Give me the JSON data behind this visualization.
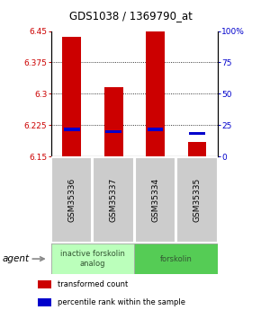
{
  "title": "GDS1038 / 1369790_at",
  "samples": [
    "GSM35336",
    "GSM35337",
    "GSM35334",
    "GSM35335"
  ],
  "bar_values": [
    6.435,
    6.315,
    6.45,
    6.185
  ],
  "percentile_values": [
    6.215,
    6.21,
    6.215,
    6.205
  ],
  "ymin": 6.15,
  "ymax": 6.45,
  "yticks": [
    6.15,
    6.225,
    6.3,
    6.375,
    6.45
  ],
  "ytick_labels": [
    "6.15",
    "6.225",
    "6.3",
    "6.375",
    "6.45"
  ],
  "right_yticks": [
    0,
    25,
    50,
    75,
    100
  ],
  "right_ytick_labels": [
    "0",
    "25",
    "50",
    "75",
    "100%"
  ],
  "gridlines": [
    6.225,
    6.3,
    6.375
  ],
  "bar_color": "#cc0000",
  "percentile_color": "#0000cc",
  "groups": [
    {
      "label": "inactive forskolin\nanalog",
      "start": 0,
      "end": 2,
      "color": "#bbffbb"
    },
    {
      "label": "forskolin",
      "start": 2,
      "end": 4,
      "color": "#55cc55"
    }
  ],
  "agent_label": "agent",
  "legend_items": [
    {
      "color": "#cc0000",
      "label": "transformed count"
    },
    {
      "color": "#0000cc",
      "label": "percentile rank within the sample"
    }
  ],
  "bar_width": 0.45,
  "sample_box_color": "#cccccc",
  "sample_text_color": "#000000",
  "bg_color": "#ffffff"
}
